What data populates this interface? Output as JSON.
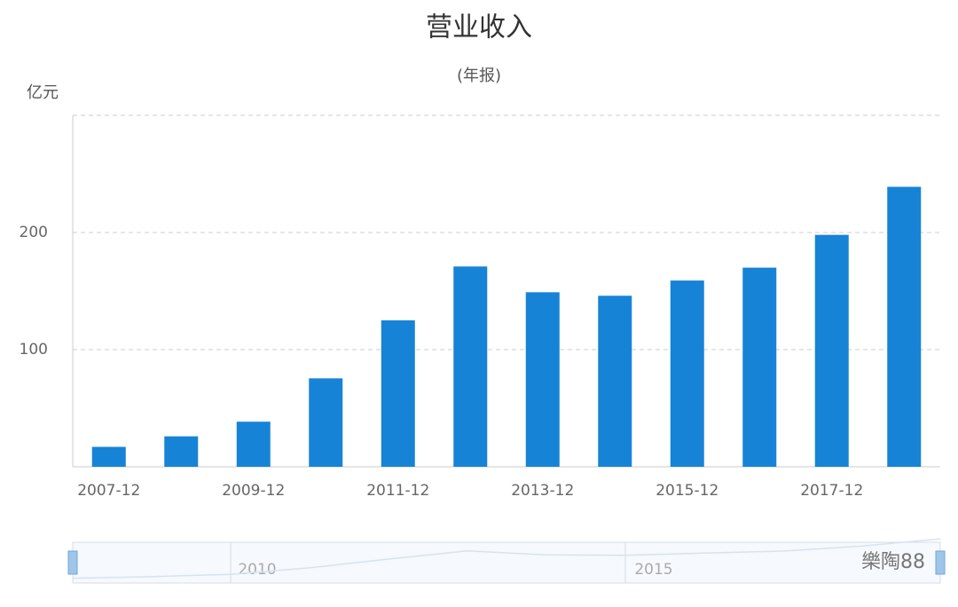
{
  "chart_data": {
    "type": "bar",
    "title": "营业收入",
    "subtitle": "(年报)",
    "y_label": "亿元",
    "categories": [
      "2007-12",
      null,
      "2009-12",
      null,
      "2011-12",
      null,
      "2013-12",
      null,
      "2015-12",
      null,
      "2017-12",
      null
    ],
    "values": [
      17,
      26,
      38.5,
      75.5,
      125,
      171,
      149,
      146,
      159,
      170,
      198,
      239
    ],
    "color": "#1783d6",
    "ylim": [
      0,
      300
    ],
    "yticks": [
      100,
      200
    ],
    "grid": true,
    "datazoom_labels": [
      "2010",
      "2015"
    ],
    "watermark": "樂陶88"
  }
}
